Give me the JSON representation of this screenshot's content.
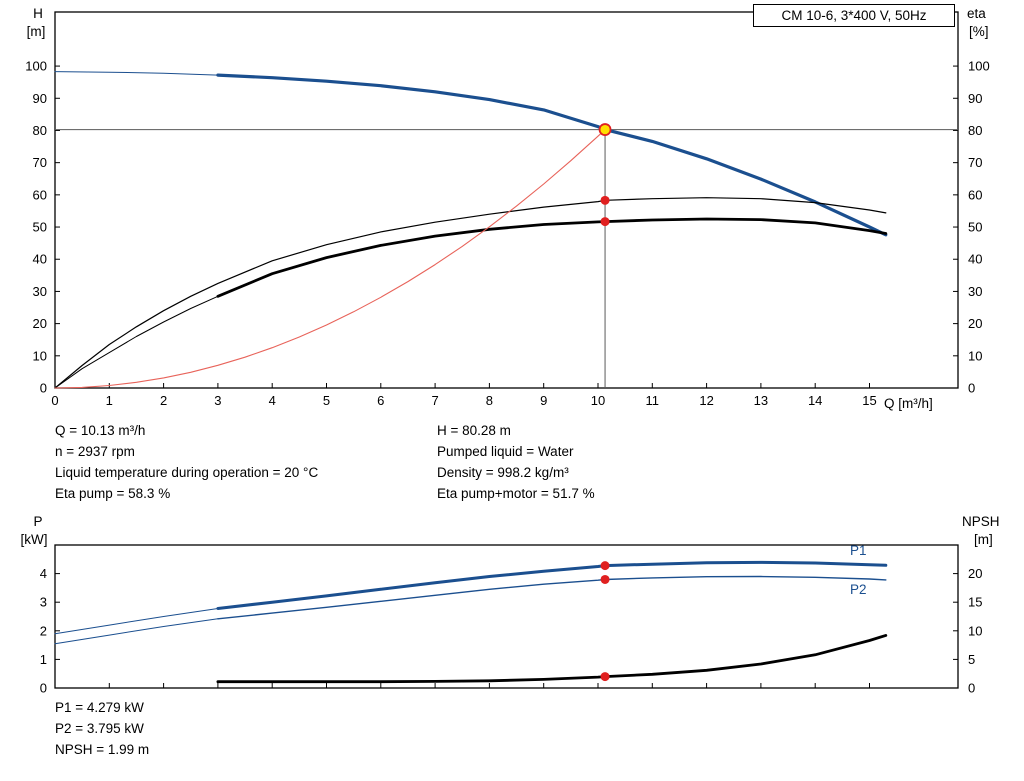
{
  "title_box": "CM 10-6, 3*400 V, 50Hz",
  "top_info": {
    "left": [
      "Q = 10.13 m³/h",
      "n = 2937 rpm",
      "Liquid temperature during operation = 20 °C",
      "Eta pump = 58.3 %"
    ],
    "right": [
      "H = 80.28 m",
      "Pumped liquid = Water",
      "Density = 998.2 kg/m³",
      "Eta pump+motor = 51.7 %"
    ]
  },
  "bottom_info": [
    "P1 = 4.279 kW",
    "P2 = 3.795 kW",
    "NPSH = 1.99 m"
  ],
  "colors": {
    "curve_blue": "#1b4f8f",
    "curve_black": "#000000",
    "system_red": "#e8635a",
    "marker_red": "#e02020",
    "duty_yellow": "#ffdf00",
    "crosshair_gray": "#5a5a5a"
  },
  "chart_data": [
    {
      "type": "line",
      "name": "hq-eta-chart",
      "x_axis": {
        "label": "Q [m³/h]",
        "min": 0,
        "max": 16.63,
        "show_labels": true,
        "ticks": [
          0,
          1,
          2,
          3,
          4,
          5,
          6,
          7,
          8,
          9,
          10,
          11,
          12,
          13,
          14,
          15
        ]
      },
      "y_left": {
        "name": "H",
        "unit": "[m]",
        "min": 0,
        "max": 116.8,
        "ticks": [
          0,
          10,
          20,
          30,
          40,
          50,
          60,
          70,
          80,
          90,
          100
        ]
      },
      "y_right": {
        "name": "eta",
        "unit": "[%]",
        "min": 0,
        "max": 116.8,
        "ticks": [
          0,
          10,
          20,
          30,
          40,
          50,
          60,
          70,
          80,
          90,
          100
        ]
      },
      "series": [
        {
          "name": "head-curve-lead",
          "axis": "left",
          "color": "#1b4f8f",
          "width": 1,
          "points": [
            [
              0,
              98.3
            ],
            [
              1,
              98.1
            ],
            [
              2,
              97.8
            ],
            [
              3,
              97.2
            ]
          ]
        },
        {
          "name": "head-curve",
          "axis": "left",
          "color": "#1b4f8f",
          "width": 3.2,
          "points": [
            [
              3,
              97.2
            ],
            [
              4,
              96.4
            ],
            [
              5,
              95.3
            ],
            [
              6,
              93.9
            ],
            [
              7,
              92.0
            ],
            [
              8,
              89.6
            ],
            [
              9,
              86.4
            ],
            [
              10,
              81.2
            ],
            [
              10.13,
              80.28
            ],
            [
              11,
              76.6
            ],
            [
              12,
              71.2
            ],
            [
              13,
              64.9
            ],
            [
              14,
              57.8
            ],
            [
              15,
              50.0
            ],
            [
              15.3,
              47.6
            ]
          ]
        },
        {
          "name": "eta-pump-curve",
          "axis": "right",
          "color": "#000000",
          "width": 1.2,
          "points": [
            [
              0,
              0
            ],
            [
              0.5,
              7
            ],
            [
              1,
              13.5
            ],
            [
              1.5,
              19
            ],
            [
              2,
              24
            ],
            [
              2.5,
              28.5
            ],
            [
              3,
              32.5
            ],
            [
              4,
              39.5
            ],
            [
              5,
              44.5
            ],
            [
              6,
              48.5
            ],
            [
              7,
              51.5
            ],
            [
              8,
              54.0
            ],
            [
              9,
              56.2
            ],
            [
              10,
              57.9
            ],
            [
              10.13,
              58.3
            ],
            [
              11,
              58.8
            ],
            [
              12,
              59.1
            ],
            [
              13,
              58.8
            ],
            [
              14,
              57.6
            ],
            [
              15,
              55.3
            ],
            [
              15.3,
              54.4
            ]
          ]
        },
        {
          "name": "eta-pump-motor-lead",
          "axis": "right",
          "color": "#000000",
          "width": 1,
          "points": [
            [
              0,
              0
            ],
            [
              0.5,
              6
            ],
            [
              1,
              11
            ],
            [
              1.5,
              16
            ],
            [
              2,
              20.5
            ],
            [
              2.5,
              24.7
            ],
            [
              3,
              28.5
            ]
          ]
        },
        {
          "name": "eta-pump-motor-curve",
          "axis": "right",
          "color": "#000000",
          "width": 2.8,
          "points": [
            [
              3,
              28.5
            ],
            [
              4,
              35.5
            ],
            [
              5,
              40.5
            ],
            [
              6,
              44.3
            ],
            [
              7,
              47.2
            ],
            [
              8,
              49.3
            ],
            [
              9,
              50.8
            ],
            [
              10,
              51.6
            ],
            [
              10.13,
              51.7
            ],
            [
              11,
              52.2
            ],
            [
              12,
              52.5
            ],
            [
              13,
              52.3
            ],
            [
              14,
              51.3
            ],
            [
              15,
              48.9
            ],
            [
              15.3,
              48.0
            ]
          ]
        },
        {
          "name": "system-curve",
          "axis": "left",
          "color": "#e8635a",
          "width": 1.1,
          "points": [
            [
              0,
              0
            ],
            [
              0.5,
              0.2
            ],
            [
              1,
              0.78
            ],
            [
              1.5,
              1.76
            ],
            [
              2,
              3.13
            ],
            [
              2.5,
              4.89
            ],
            [
              3,
              7.04
            ],
            [
              3.5,
              9.58
            ],
            [
              4,
              12.52
            ],
            [
              4.5,
              15.84
            ],
            [
              5,
              19.56
            ],
            [
              5.5,
              23.66
            ],
            [
              6,
              28.16
            ],
            [
              6.5,
              33.05
            ],
            [
              7,
              38.33
            ],
            [
              7.5,
              44.0
            ],
            [
              8,
              50.07
            ],
            [
              8.5,
              56.52
            ],
            [
              9,
              63.37
            ],
            [
              9.5,
              70.6
            ],
            [
              10,
              78.23
            ],
            [
              10.13,
              80.28
            ]
          ]
        }
      ],
      "crosshair": {
        "x": 10.13,
        "y": 80.28
      },
      "operating_point": {
        "x": 10.13,
        "y": 80.28,
        "axis": "left"
      },
      "point_markers": [
        {
          "x": 10.13,
          "y": 58.3,
          "axis": "right"
        },
        {
          "x": 10.13,
          "y": 51.7,
          "axis": "right"
        }
      ]
    },
    {
      "type": "line",
      "name": "power-npsh-chart",
      "x_axis": {
        "label": "",
        "min": 0,
        "max": 16.63,
        "show_labels": false,
        "ticks": [
          0,
          1,
          2,
          3,
          4,
          5,
          6,
          7,
          8,
          9,
          10,
          11,
          12,
          13,
          14,
          15
        ]
      },
      "y_left": {
        "name": "P",
        "unit": "[kW]",
        "min": 0,
        "max": 5,
        "ticks": [
          0,
          1,
          2,
          3,
          4
        ]
      },
      "y_right": {
        "name": "NPSH",
        "unit": "[m]",
        "min": 0,
        "max": 25,
        "ticks": [
          0,
          5,
          10,
          15,
          20
        ]
      },
      "series": [
        {
          "name": "p1-curve-lead",
          "axis": "left",
          "color": "#1b4f8f",
          "width": 1,
          "points": [
            [
              0,
              1.9
            ],
            [
              1,
              2.2
            ],
            [
              2,
              2.5
            ],
            [
              3,
              2.78
            ]
          ]
        },
        {
          "name": "p1-curve",
          "label": "P1",
          "axis": "left",
          "color": "#1b4f8f",
          "width": 3,
          "points": [
            [
              3,
              2.78
            ],
            [
              4,
              3.0
            ],
            [
              5,
              3.22
            ],
            [
              6,
              3.45
            ],
            [
              7,
              3.68
            ],
            [
              8,
              3.9
            ],
            [
              9,
              4.08
            ],
            [
              10,
              4.25
            ],
            [
              10.13,
              4.279
            ],
            [
              11,
              4.33
            ],
            [
              12,
              4.38
            ],
            [
              13,
              4.39
            ],
            [
              14,
              4.37
            ],
            [
              15,
              4.31
            ],
            [
              15.3,
              4.29
            ]
          ]
        },
        {
          "name": "p2-curve-lead",
          "axis": "left",
          "color": "#1b4f8f",
          "width": 1,
          "points": [
            [
              0,
              1.55
            ],
            [
              1,
              1.85
            ],
            [
              2,
              2.15
            ],
            [
              3,
              2.42
            ]
          ]
        },
        {
          "name": "p2-curve",
          "label": "P2",
          "axis": "left",
          "color": "#1b4f8f",
          "width": 1.4,
          "points": [
            [
              3,
              2.42
            ],
            [
              4,
              2.62
            ],
            [
              5,
              2.82
            ],
            [
              6,
              3.03
            ],
            [
              7,
              3.24
            ],
            [
              8,
              3.45
            ],
            [
              9,
              3.63
            ],
            [
              10,
              3.77
            ],
            [
              10.13,
              3.795
            ],
            [
              11,
              3.85
            ],
            [
              12,
              3.89
            ],
            [
              13,
              3.9
            ],
            [
              14,
              3.87
            ],
            [
              15,
              3.81
            ],
            [
              15.3,
              3.78
            ]
          ]
        },
        {
          "name": "npsh-curve",
          "axis": "right",
          "color": "#000000",
          "width": 2.8,
          "points": [
            [
              3,
              1.1
            ],
            [
              4,
              1.1
            ],
            [
              5,
              1.1
            ],
            [
              6,
              1.1
            ],
            [
              7,
              1.15
            ],
            [
              8,
              1.25
            ],
            [
              9,
              1.5
            ],
            [
              10,
              1.9
            ],
            [
              10.13,
              1.99
            ],
            [
              11,
              2.4
            ],
            [
              12,
              3.1
            ],
            [
              13,
              4.2
            ],
            [
              14,
              5.8
            ],
            [
              15,
              8.3
            ],
            [
              15.3,
              9.2
            ]
          ]
        }
      ],
      "point_markers": [
        {
          "x": 10.13,
          "y": 4.279,
          "axis": "left"
        },
        {
          "x": 10.13,
          "y": 3.795,
          "axis": "left"
        },
        {
          "x": 10.13,
          "y": 1.99,
          "axis": "right"
        }
      ]
    }
  ]
}
